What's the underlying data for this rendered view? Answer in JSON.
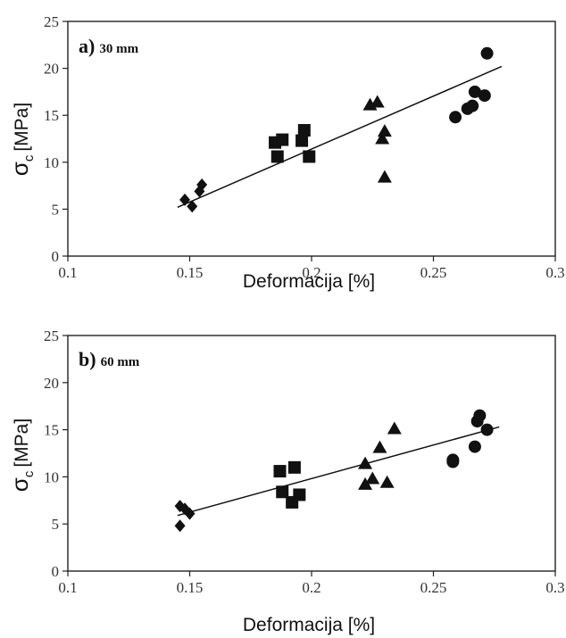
{
  "chart_data": [
    {
      "type": "scatter",
      "panel_label": "a)",
      "panel_title": "30 mm",
      "xlabel": "Deformacija [%]",
      "ylabel_main": "σ",
      "ylabel_sub": "c",
      "ylabel_unit": "[MPa]",
      "xlim": [
        0.1,
        0.3
      ],
      "ylim": [
        0,
        25
      ],
      "x_ticks": [
        "0.1",
        "0.15",
        "0.2",
        "0.25",
        "0.3"
      ],
      "y_ticks": [
        "0",
        "5",
        "10",
        "15",
        "20",
        "25"
      ],
      "grid": false,
      "series": [
        {
          "marker": "diamond",
          "points": [
            [
              0.148,
              6.0
            ],
            [
              0.151,
              5.3
            ],
            [
              0.154,
              6.9
            ],
            [
              0.155,
              7.6
            ]
          ]
        },
        {
          "marker": "square",
          "points": [
            [
              0.185,
              12.1
            ],
            [
              0.186,
              10.6
            ],
            [
              0.188,
              12.4
            ],
            [
              0.196,
              12.3
            ],
            [
              0.197,
              13.4
            ],
            [
              0.199,
              10.6
            ]
          ]
        },
        {
          "marker": "triangle",
          "points": [
            [
              0.224,
              16.1
            ],
            [
              0.227,
              16.4
            ],
            [
              0.229,
              12.5
            ],
            [
              0.23,
              13.3
            ],
            [
              0.23,
              8.4
            ]
          ]
        },
        {
          "marker": "circle",
          "points": [
            [
              0.259,
              14.8
            ],
            [
              0.264,
              15.7
            ],
            [
              0.266,
              16.0
            ],
            [
              0.267,
              17.5
            ],
            [
              0.271,
              17.1
            ],
            [
              0.272,
              21.6
            ]
          ]
        }
      ],
      "trendline": [
        [
          0.145,
          5.2
        ],
        [
          0.278,
          20.2
        ]
      ]
    },
    {
      "type": "scatter",
      "panel_label": "b)",
      "panel_title": "60 mm",
      "xlabel": "Deformacija [%]",
      "ylabel_main": "σ",
      "ylabel_sub": "c",
      "ylabel_unit": "[MPa]",
      "xlim": [
        0.1,
        0.3
      ],
      "ylim": [
        0,
        25
      ],
      "x_ticks": [
        "0.1",
        "0.15",
        "0.2",
        "0.25",
        "0.3"
      ],
      "y_ticks": [
        "0",
        "5",
        "10",
        "15",
        "20",
        "25"
      ],
      "grid": false,
      "series": [
        {
          "marker": "diamond",
          "points": [
            [
              0.146,
              4.8
            ],
            [
              0.146,
              6.9
            ],
            [
              0.148,
              6.6
            ],
            [
              0.15,
              6.1
            ]
          ]
        },
        {
          "marker": "square",
          "points": [
            [
              0.187,
              10.6
            ],
            [
              0.188,
              8.4
            ],
            [
              0.192,
              7.3
            ],
            [
              0.193,
              11.0
            ],
            [
              0.195,
              8.1
            ]
          ]
        },
        {
          "marker": "triangle",
          "points": [
            [
              0.222,
              11.4
            ],
            [
              0.222,
              9.2
            ],
            [
              0.225,
              9.8
            ],
            [
              0.228,
              13.1
            ],
            [
              0.231,
              9.4
            ],
            [
              0.234,
              15.1
            ]
          ]
        },
        {
          "marker": "circle",
          "points": [
            [
              0.258,
              11.8
            ],
            [
              0.258,
              11.6
            ],
            [
              0.267,
              13.2
            ],
            [
              0.268,
              15.9
            ],
            [
              0.269,
              16.5
            ],
            [
              0.272,
              15.0
            ]
          ]
        }
      ],
      "trendline": [
        [
          0.145,
          5.9
        ],
        [
          0.277,
          15.3
        ]
      ]
    }
  ]
}
